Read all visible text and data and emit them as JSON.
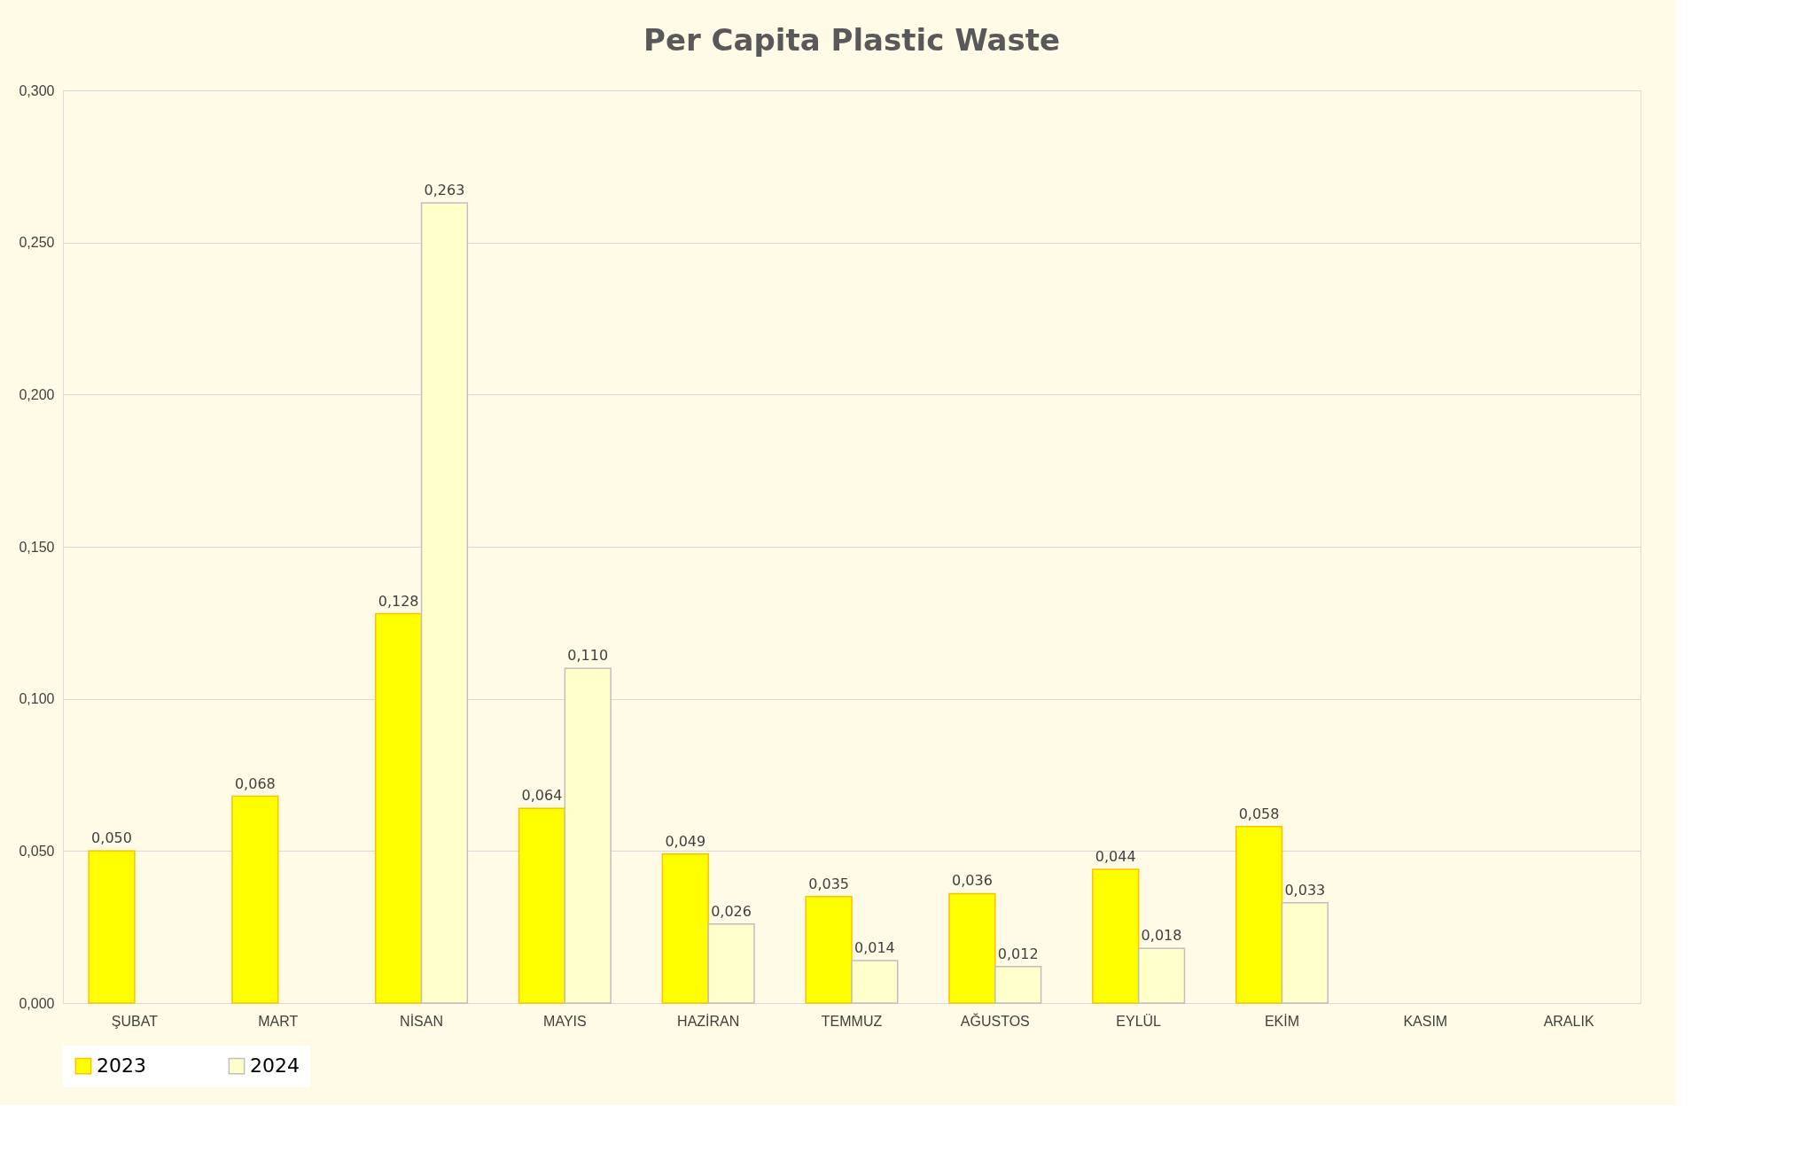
{
  "chart_data": {
    "type": "bar",
    "title": "Per Capita Plastic Waste",
    "categories": [
      "ŞUBAT",
      "MART",
      "NİSAN",
      "MAYIS",
      "HAZİRAN",
      "TEMMUZ",
      "AĞUSTOS",
      "EYLÜL",
      "EKİM",
      "KASIM",
      "ARALIK"
    ],
    "series": [
      {
        "name": "2023",
        "color": "#ffff00",
        "values": [
          0.05,
          0.068,
          0.128,
          0.064,
          0.049,
          0.035,
          0.036,
          0.044,
          0.058,
          null,
          null
        ],
        "value_labels": [
          "0,050",
          "0,068",
          "0,128",
          "0,064",
          "0,049",
          "0,035",
          "0,036",
          "0,044",
          "0,058",
          null,
          null
        ]
      },
      {
        "name": "2024",
        "color": "#ffffcc",
        "values": [
          null,
          null,
          0.263,
          0.11,
          0.026,
          0.014,
          0.012,
          0.018,
          0.033,
          null,
          null
        ],
        "value_labels": [
          null,
          null,
          "0,263",
          "0,110",
          "0,026",
          "0,014",
          "0,012",
          "0,018",
          "0,033",
          null,
          null
        ]
      }
    ],
    "ylim": [
      0,
      0.3
    ],
    "yticks": [
      {
        "value": 0,
        "label": "0,000"
      },
      {
        "value": 0.05,
        "label": "0,050"
      },
      {
        "value": 0.1,
        "label": "0,100"
      },
      {
        "value": 0.15,
        "label": "0,150"
      },
      {
        "value": 0.2,
        "label": "0,200"
      },
      {
        "value": 0.25,
        "label": "0,250"
      },
      {
        "value": 0.3,
        "label": "0,300"
      }
    ],
    "grid": "y",
    "legend": "bottom"
  }
}
